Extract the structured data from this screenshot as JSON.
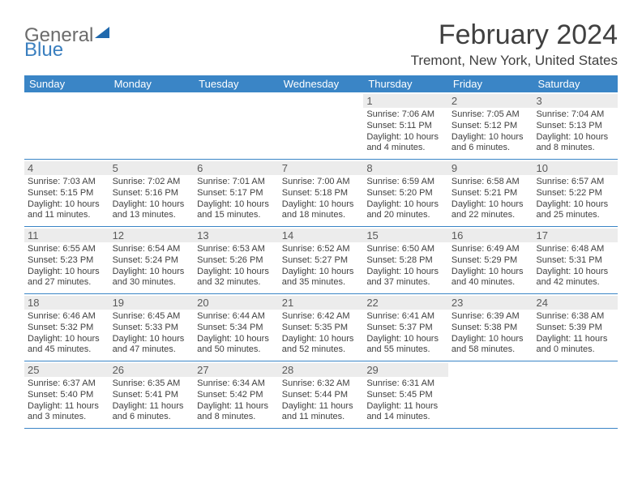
{
  "brand": {
    "part1": "General",
    "part2": "Blue"
  },
  "title": "February 2024",
  "location": "Tremont, New York, United States",
  "colors": {
    "header_bg": "#3a85c6",
    "daynum_bg": "#ececec",
    "text": "#404040",
    "brand_blue": "#3a7fbf",
    "brand_grey": "#6b6b6b"
  },
  "dow": [
    "Sunday",
    "Monday",
    "Tuesday",
    "Wednesday",
    "Thursday",
    "Friday",
    "Saturday"
  ],
  "weeks": [
    [
      null,
      null,
      null,
      null,
      {
        "n": "1",
        "sr": "Sunrise: 7:06 AM",
        "ss": "Sunset: 5:11 PM",
        "dl1": "Daylight: 10 hours",
        "dl2": "and 4 minutes."
      },
      {
        "n": "2",
        "sr": "Sunrise: 7:05 AM",
        "ss": "Sunset: 5:12 PM",
        "dl1": "Daylight: 10 hours",
        "dl2": "and 6 minutes."
      },
      {
        "n": "3",
        "sr": "Sunrise: 7:04 AM",
        "ss": "Sunset: 5:13 PM",
        "dl1": "Daylight: 10 hours",
        "dl2": "and 8 minutes."
      }
    ],
    [
      {
        "n": "4",
        "sr": "Sunrise: 7:03 AM",
        "ss": "Sunset: 5:15 PM",
        "dl1": "Daylight: 10 hours",
        "dl2": "and 11 minutes."
      },
      {
        "n": "5",
        "sr": "Sunrise: 7:02 AM",
        "ss": "Sunset: 5:16 PM",
        "dl1": "Daylight: 10 hours",
        "dl2": "and 13 minutes."
      },
      {
        "n": "6",
        "sr": "Sunrise: 7:01 AM",
        "ss": "Sunset: 5:17 PM",
        "dl1": "Daylight: 10 hours",
        "dl2": "and 15 minutes."
      },
      {
        "n": "7",
        "sr": "Sunrise: 7:00 AM",
        "ss": "Sunset: 5:18 PM",
        "dl1": "Daylight: 10 hours",
        "dl2": "and 18 minutes."
      },
      {
        "n": "8",
        "sr": "Sunrise: 6:59 AM",
        "ss": "Sunset: 5:20 PM",
        "dl1": "Daylight: 10 hours",
        "dl2": "and 20 minutes."
      },
      {
        "n": "9",
        "sr": "Sunrise: 6:58 AM",
        "ss": "Sunset: 5:21 PM",
        "dl1": "Daylight: 10 hours",
        "dl2": "and 22 minutes."
      },
      {
        "n": "10",
        "sr": "Sunrise: 6:57 AM",
        "ss": "Sunset: 5:22 PM",
        "dl1": "Daylight: 10 hours",
        "dl2": "and 25 minutes."
      }
    ],
    [
      {
        "n": "11",
        "sr": "Sunrise: 6:55 AM",
        "ss": "Sunset: 5:23 PM",
        "dl1": "Daylight: 10 hours",
        "dl2": "and 27 minutes."
      },
      {
        "n": "12",
        "sr": "Sunrise: 6:54 AM",
        "ss": "Sunset: 5:24 PM",
        "dl1": "Daylight: 10 hours",
        "dl2": "and 30 minutes."
      },
      {
        "n": "13",
        "sr": "Sunrise: 6:53 AM",
        "ss": "Sunset: 5:26 PM",
        "dl1": "Daylight: 10 hours",
        "dl2": "and 32 minutes."
      },
      {
        "n": "14",
        "sr": "Sunrise: 6:52 AM",
        "ss": "Sunset: 5:27 PM",
        "dl1": "Daylight: 10 hours",
        "dl2": "and 35 minutes."
      },
      {
        "n": "15",
        "sr": "Sunrise: 6:50 AM",
        "ss": "Sunset: 5:28 PM",
        "dl1": "Daylight: 10 hours",
        "dl2": "and 37 minutes."
      },
      {
        "n": "16",
        "sr": "Sunrise: 6:49 AM",
        "ss": "Sunset: 5:29 PM",
        "dl1": "Daylight: 10 hours",
        "dl2": "and 40 minutes."
      },
      {
        "n": "17",
        "sr": "Sunrise: 6:48 AM",
        "ss": "Sunset: 5:31 PM",
        "dl1": "Daylight: 10 hours",
        "dl2": "and 42 minutes."
      }
    ],
    [
      {
        "n": "18",
        "sr": "Sunrise: 6:46 AM",
        "ss": "Sunset: 5:32 PM",
        "dl1": "Daylight: 10 hours",
        "dl2": "and 45 minutes."
      },
      {
        "n": "19",
        "sr": "Sunrise: 6:45 AM",
        "ss": "Sunset: 5:33 PM",
        "dl1": "Daylight: 10 hours",
        "dl2": "and 47 minutes."
      },
      {
        "n": "20",
        "sr": "Sunrise: 6:44 AM",
        "ss": "Sunset: 5:34 PM",
        "dl1": "Daylight: 10 hours",
        "dl2": "and 50 minutes."
      },
      {
        "n": "21",
        "sr": "Sunrise: 6:42 AM",
        "ss": "Sunset: 5:35 PM",
        "dl1": "Daylight: 10 hours",
        "dl2": "and 52 minutes."
      },
      {
        "n": "22",
        "sr": "Sunrise: 6:41 AM",
        "ss": "Sunset: 5:37 PM",
        "dl1": "Daylight: 10 hours",
        "dl2": "and 55 minutes."
      },
      {
        "n": "23",
        "sr": "Sunrise: 6:39 AM",
        "ss": "Sunset: 5:38 PM",
        "dl1": "Daylight: 10 hours",
        "dl2": "and 58 minutes."
      },
      {
        "n": "24",
        "sr": "Sunrise: 6:38 AM",
        "ss": "Sunset: 5:39 PM",
        "dl1": "Daylight: 11 hours",
        "dl2": "and 0 minutes."
      }
    ],
    [
      {
        "n": "25",
        "sr": "Sunrise: 6:37 AM",
        "ss": "Sunset: 5:40 PM",
        "dl1": "Daylight: 11 hours",
        "dl2": "and 3 minutes."
      },
      {
        "n": "26",
        "sr": "Sunrise: 6:35 AM",
        "ss": "Sunset: 5:41 PM",
        "dl1": "Daylight: 11 hours",
        "dl2": "and 6 minutes."
      },
      {
        "n": "27",
        "sr": "Sunrise: 6:34 AM",
        "ss": "Sunset: 5:42 PM",
        "dl1": "Daylight: 11 hours",
        "dl2": "and 8 minutes."
      },
      {
        "n": "28",
        "sr": "Sunrise: 6:32 AM",
        "ss": "Sunset: 5:44 PM",
        "dl1": "Daylight: 11 hours",
        "dl2": "and 11 minutes."
      },
      {
        "n": "29",
        "sr": "Sunrise: 6:31 AM",
        "ss": "Sunset: 5:45 PM",
        "dl1": "Daylight: 11 hours",
        "dl2": "and 14 minutes."
      },
      null,
      null
    ]
  ]
}
